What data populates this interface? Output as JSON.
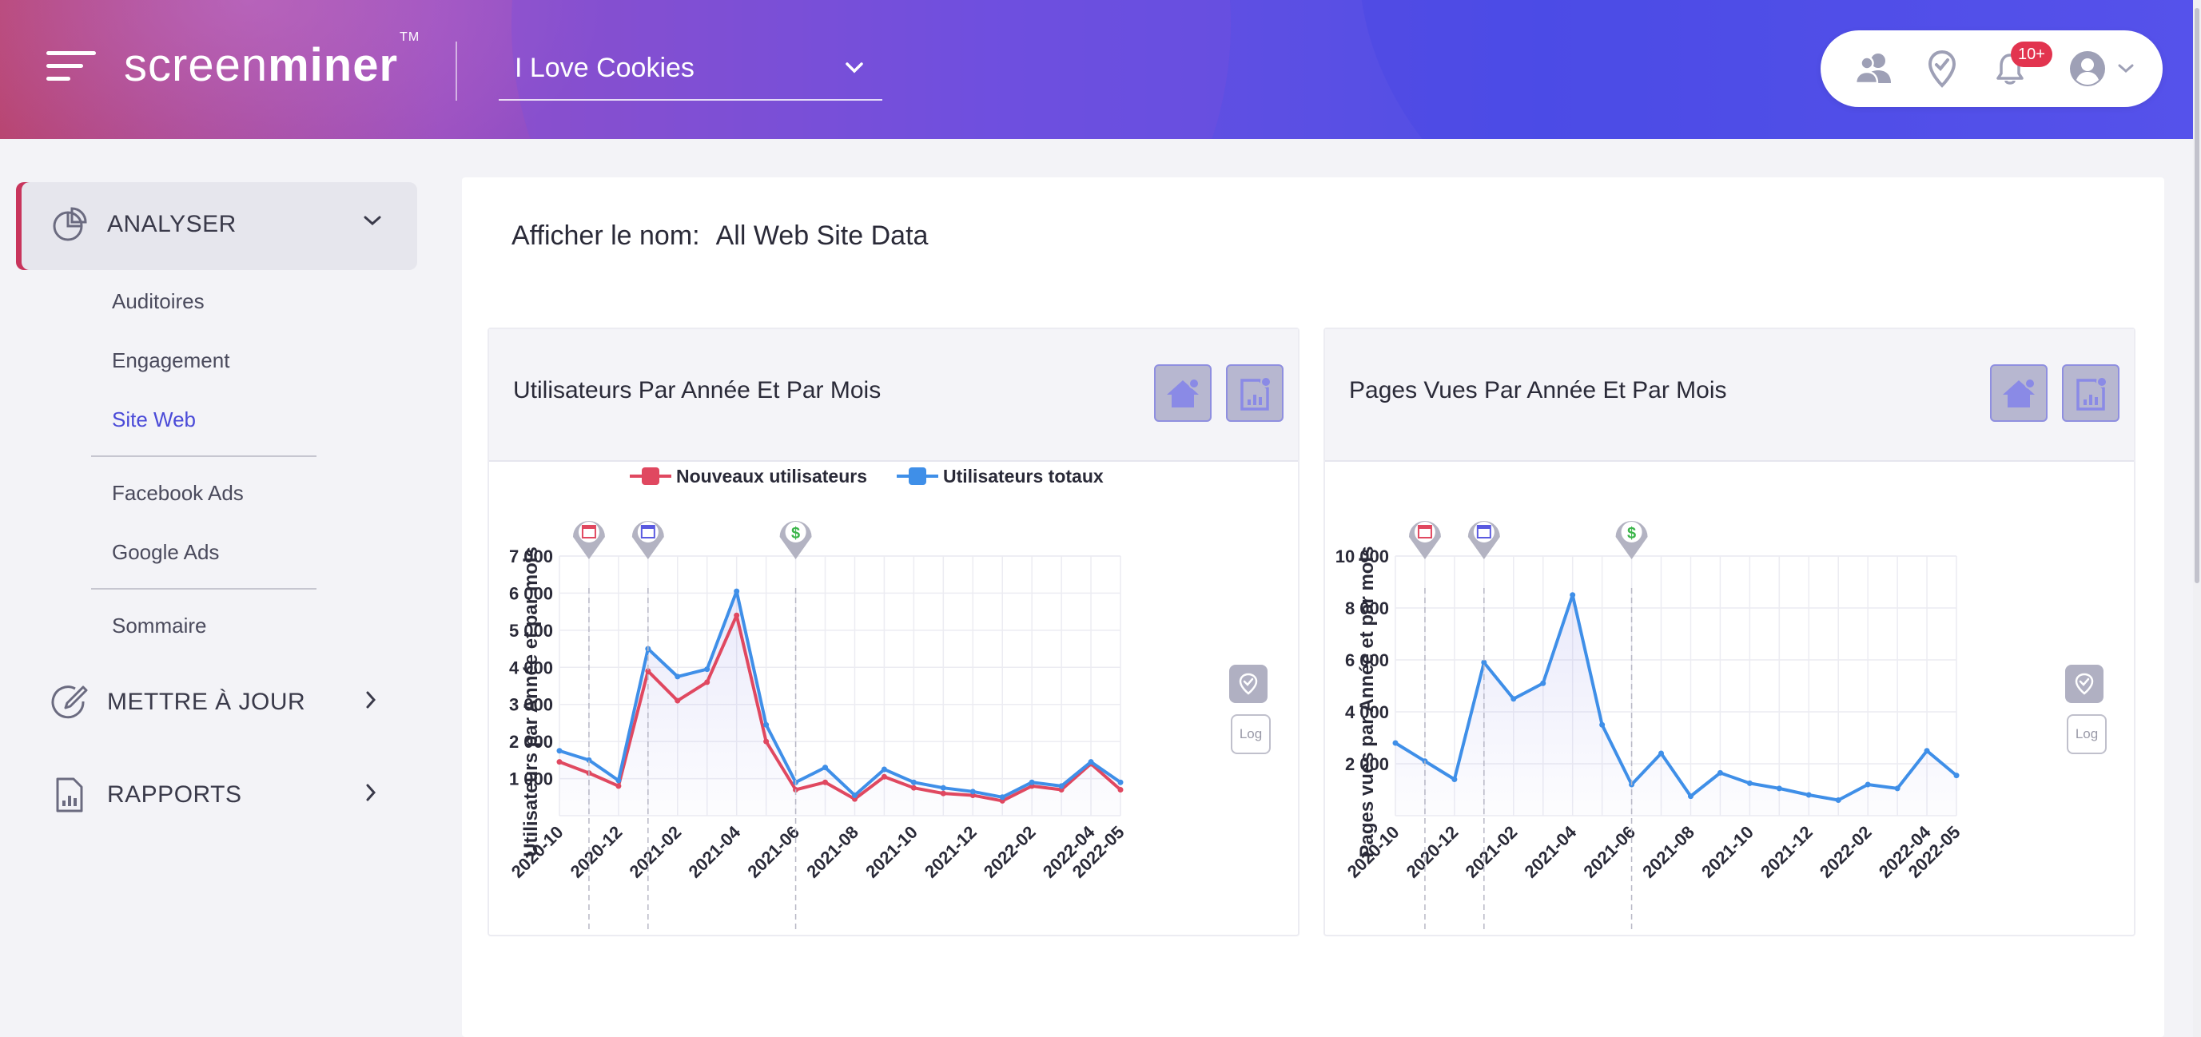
{
  "header": {
    "logo_light": "screen",
    "logo_bold": "miner",
    "logo_tm": "TM",
    "site_select_value": "I Love Cookies",
    "notification_count": "10+"
  },
  "sidebar": {
    "analyser": {
      "label": "ANALYSER"
    },
    "analyser_items": [
      {
        "label": "Auditoires"
      },
      {
        "label": "Engagement"
      },
      {
        "label": "Site Web"
      },
      {
        "label": "Facebook Ads"
      },
      {
        "label": "Google Ads"
      },
      {
        "label": "Sommaire"
      }
    ],
    "mettre_a_jour": {
      "label": "METTRE À JOUR"
    },
    "rapports": {
      "label": "RAPPORTS"
    }
  },
  "main": {
    "view_name_label": "Afficher le nom:",
    "view_name_value": "All Web Site Data",
    "log_label": "Log"
  },
  "colors": {
    "new_users": "#e04860",
    "total_users": "#3f8fe8",
    "pageviews": "#3f8fe8",
    "marker_grey": "#b3b3c2"
  },
  "chart_data": [
    {
      "type": "line",
      "title": "Utilisateurs Par Année Et Par Mois",
      "ylabel": "Utilisateurs par Année et par mois",
      "xlabel": "",
      "x": [
        "2020-10",
        "2020-11",
        "2020-12",
        "2021-01",
        "2021-02",
        "2021-03",
        "2021-04",
        "2021-05",
        "2021-06",
        "2021-07",
        "2021-08",
        "2021-09",
        "2021-10",
        "2021-11",
        "2021-12",
        "2022-01",
        "2022-02",
        "2022-03",
        "2022-04",
        "2022-05"
      ],
      "x_tick_labels": [
        "2020-10",
        "2020-12",
        "2021-02",
        "2021-04",
        "2021-06",
        "2021-08",
        "2021-10",
        "2021-12",
        "2022-02",
        "2022-04",
        "2022-05"
      ],
      "y_ticks": [
        "1 000",
        "2 000",
        "3 000",
        "4 000",
        "5 000",
        "6 000",
        "7 000"
      ],
      "ylim": [
        0,
        7000
      ],
      "grid": true,
      "legend": "top",
      "series": [
        {
          "name": "Nouveaux utilisateurs",
          "values": [
            1450,
            1150,
            800,
            3900,
            3100,
            3600,
            5400,
            2000,
            700,
            900,
            450,
            1050,
            750,
            600,
            550,
            400,
            800,
            700,
            1400,
            700
          ]
        },
        {
          "name": "Utilisateurs totaux",
          "values": [
            1750,
            1500,
            950,
            4500,
            3750,
            3950,
            6050,
            2450,
            900,
            1300,
            550,
            1250,
            900,
            750,
            650,
            500,
            900,
            800,
            1450,
            900
          ]
        }
      ],
      "annotations": [
        "calendar-red",
        "calendar-blue",
        "dollar-green"
      ]
    },
    {
      "type": "line",
      "title": "Pages Vues Par Année Et Par Mois",
      "ylabel": "Pages vues par Année et par mois",
      "xlabel": "",
      "x": [
        "2020-10",
        "2020-11",
        "2020-12",
        "2021-01",
        "2021-02",
        "2021-03",
        "2021-04",
        "2021-05",
        "2021-06",
        "2021-07",
        "2021-08",
        "2021-09",
        "2021-10",
        "2021-11",
        "2021-12",
        "2022-01",
        "2022-02",
        "2022-03",
        "2022-04",
        "2022-05"
      ],
      "x_tick_labels": [
        "2020-10",
        "2020-12",
        "2021-02",
        "2021-04",
        "2021-06",
        "2021-08",
        "2021-10",
        "2021-12",
        "2022-02",
        "2022-04",
        "2022-05"
      ],
      "y_ticks": [
        "2 000",
        "4 000",
        "6 000",
        "8 000",
        "10 000"
      ],
      "ylim": [
        0,
        10000
      ],
      "grid": true,
      "legend": "none",
      "series": [
        {
          "values": [
            2800,
            2100,
            1400,
            5900,
            4500,
            5100,
            8500,
            3500,
            1200,
            2400,
            750,
            1650,
            1250,
            1050,
            800,
            600,
            1200,
            1050,
            2500,
            1550
          ]
        }
      ],
      "annotations": [
        "calendar-red",
        "calendar-blue",
        "dollar-green"
      ]
    }
  ]
}
